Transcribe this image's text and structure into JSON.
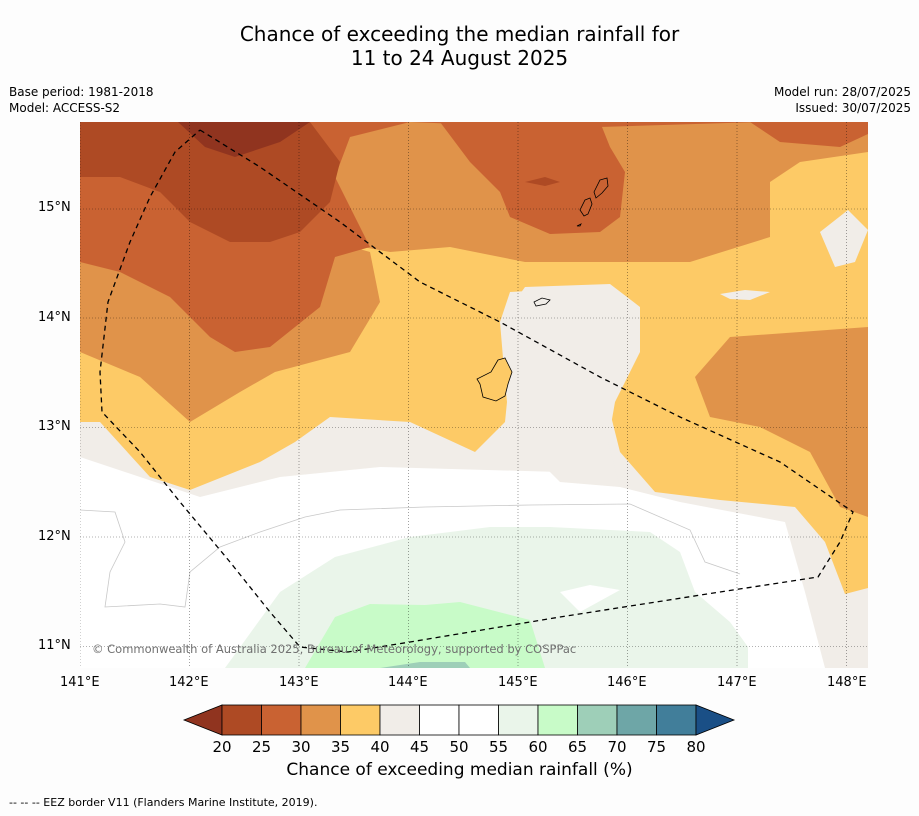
{
  "title": {
    "line1": "Chance of exceeding the median rainfall for",
    "line2": "11 to 24 August 2025"
  },
  "meta_left": {
    "base_period": "Base period: 1981-2018",
    "model": "Model: ACCESS-S2"
  },
  "meta_right": {
    "model_run": "Model run: 28/07/2025",
    "issued": "Issued: 30/07/2025"
  },
  "map": {
    "lon_range": [
      141,
      148.2
    ],
    "lat_range": [
      10.8,
      15.8
    ],
    "lon_ticks": [
      "141°E",
      "142°E",
      "143°E",
      "144°E",
      "145°E",
      "146°E",
      "147°E",
      "148°E"
    ],
    "lat_ticks": [
      "15°N",
      "14°N",
      "13°N",
      "12°N",
      "11°N"
    ],
    "copyright": "© Commonwealth of Australia 2025, Bureau of Meteorology, supported by COSPPac"
  },
  "colorbar": {
    "ticks": [
      "20",
      "25",
      "30",
      "35",
      "40",
      "45",
      "50",
      "55",
      "60",
      "65",
      "70",
      "75",
      "80"
    ],
    "colors": [
      "#ae4a24",
      "#c96232",
      "#e0934a",
      "#fdca66",
      "#f1ede8",
      "#ffffff",
      "#ffffff",
      "#eaf5ea",
      "#c8fbc8",
      "#9ecfb8",
      "#6ea6a7",
      "#417e9a"
    ],
    "under_color": "#90341f",
    "over_color": "#1a4f86",
    "label": "Chance of exceeding median rainfall (%)"
  },
  "footnote": "--  --  -- EEZ border V11 (Flanders Marine Institute, 2019)."
}
